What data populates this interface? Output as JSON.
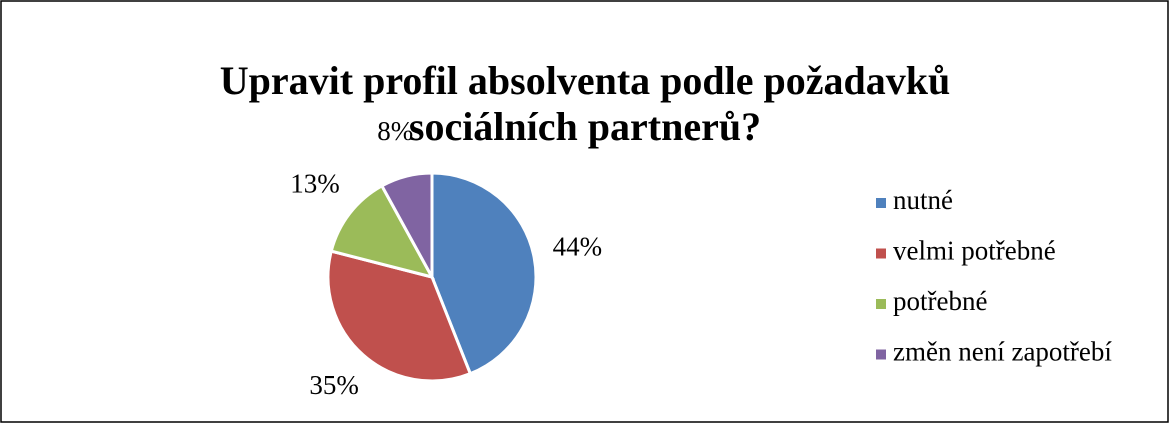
{
  "chart_data": {
    "type": "pie",
    "title": "Upravit profil absolventa podle požadavků sociálních partnerů?",
    "categories": [
      "nutné",
      "velmi potřebné",
      "potřebné",
      "změn není zapotřebí"
    ],
    "values": [
      44,
      35,
      13,
      8
    ],
    "value_labels": [
      "44%",
      "35%",
      "13%",
      "8%"
    ],
    "colors": [
      "#4f81bd",
      "#c0504d",
      "#9bbb59",
      "#8064a2"
    ],
    "legend": "right"
  }
}
